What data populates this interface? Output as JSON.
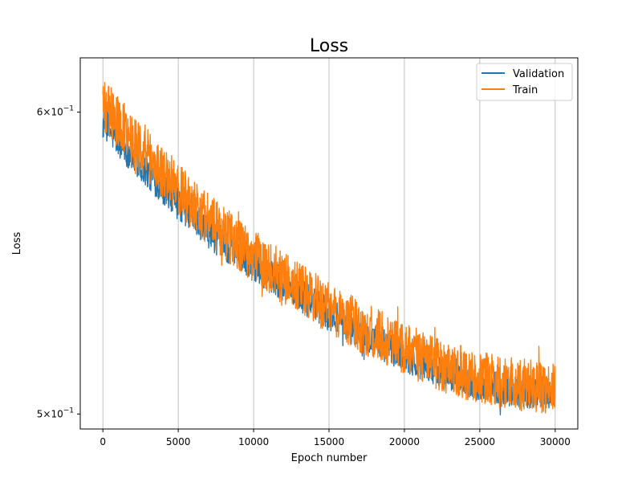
{
  "chart_data": {
    "type": "line",
    "title": "Loss",
    "xlabel": "Epoch number",
    "ylabel": "Loss",
    "xscale": "linear",
    "yscale": "log",
    "xlim": [
      -1500,
      31500
    ],
    "ylim": [
      0.4955,
      0.62
    ],
    "xticks": [
      0,
      5000,
      10000,
      15000,
      20000,
      25000,
      30000
    ],
    "xtick_labels": [
      "0",
      "5000",
      "10000",
      "15000",
      "20000",
      "25000",
      "30000"
    ],
    "yticks": [
      {
        "value": 0.5,
        "base": "5",
        "exp": "−1"
      },
      {
        "value": 0.6,
        "base": "6",
        "exp": "−1"
      }
    ],
    "grid": "x-major",
    "legend_position": "top-right",
    "series": [
      {
        "name": "Validation",
        "color": "#1f77b4",
        "x": [
          0,
          2500,
          5000,
          7500,
          10000,
          12500,
          15000,
          17500,
          20000,
          22500,
          25000,
          27500,
          30000
        ],
        "y": [
          0.596,
          0.581,
          0.568,
          0.556,
          0.547,
          0.539,
          0.531,
          0.524,
          0.518,
          0.513,
          0.509,
          0.507,
          0.506
        ],
        "noise": 0.01
      },
      {
        "name": "Train",
        "color": "#ff7f0e",
        "x": [
          0,
          2500,
          5000,
          7500,
          10000,
          12500,
          15000,
          17500,
          20000,
          22500,
          25000,
          27500,
          30000
        ],
        "y": [
          0.603,
          0.587,
          0.573,
          0.56,
          0.55,
          0.541,
          0.533,
          0.526,
          0.52,
          0.515,
          0.511,
          0.509,
          0.508
        ],
        "noise": 0.016
      }
    ]
  }
}
